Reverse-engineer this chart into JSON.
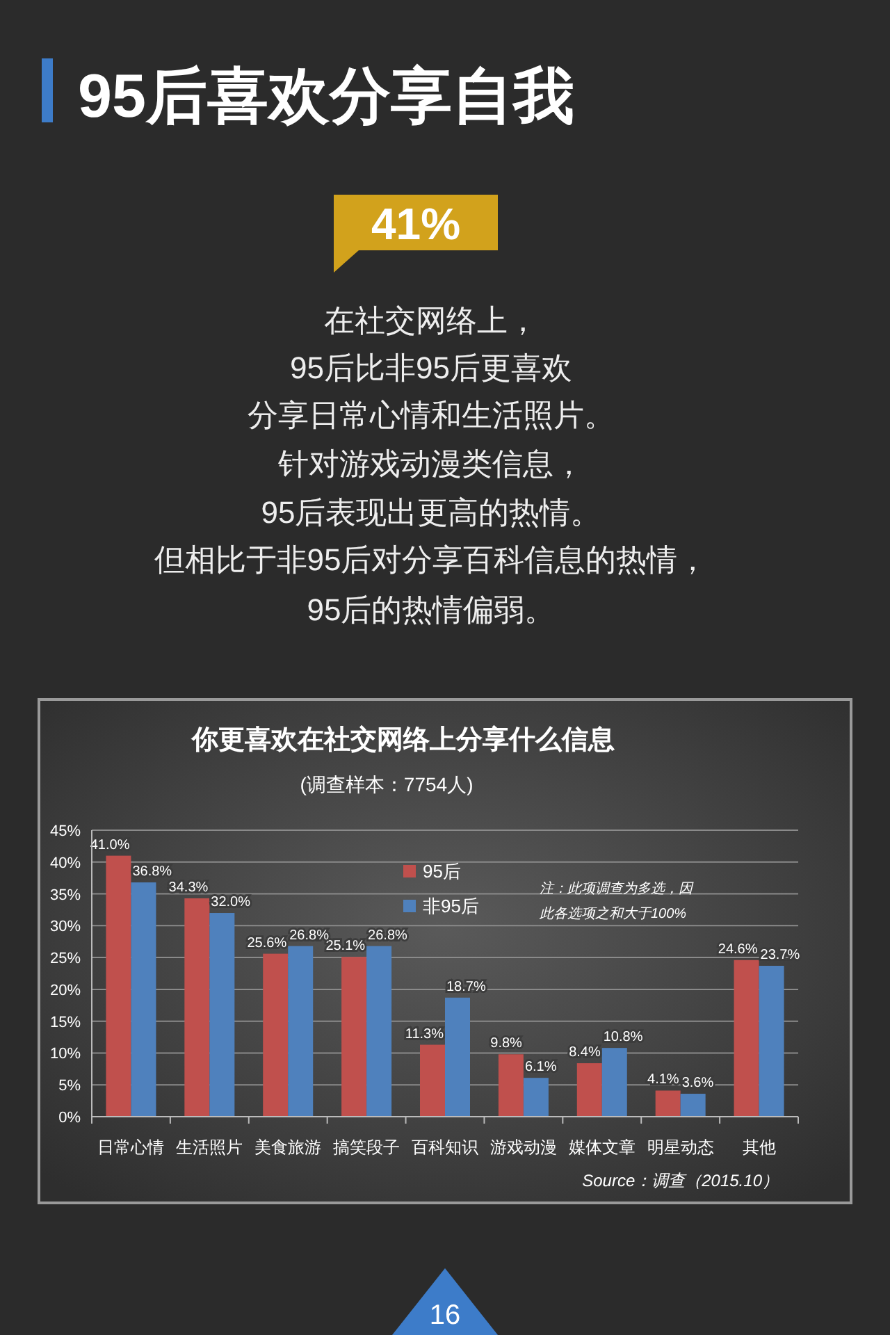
{
  "chart_data": {
    "type": "bar",
    "title": "你更喜欢在社交网络上分享什么信息",
    "subtitle": "(调查样本：7754人)",
    "categories": [
      "日常心情",
      "生活照片",
      "美食旅游",
      "搞笑段子",
      "百科知识",
      "游戏动漫",
      "媒体文章",
      "明星动态",
      "其他"
    ],
    "series": [
      {
        "name": "95后",
        "color": "#c0504d",
        "values": [
          41.0,
          34.3,
          25.6,
          25.1,
          11.3,
          9.8,
          8.4,
          4.1,
          24.6
        ]
      },
      {
        "name": "非95后",
        "color": "#4f81bd",
        "values": [
          36.8,
          32.0,
          26.8,
          26.8,
          18.7,
          6.1,
          10.8,
          3.6,
          23.7
        ]
      }
    ],
    "ylim": [
      0,
      45
    ],
    "yticks": [
      {
        "value": 0,
        "label": "0%"
      },
      {
        "value": 5,
        "label": "5%"
      },
      {
        "value": 10,
        "label": "10%"
      },
      {
        "value": 15,
        "label": "15%"
      },
      {
        "value": 20,
        "label": "20%"
      },
      {
        "value": 25,
        "label": "25%"
      },
      {
        "value": 30,
        "label": "30%"
      },
      {
        "value": 35,
        "label": "35%"
      },
      {
        "value": 40,
        "label": "40%"
      },
      {
        "value": 45,
        "label": "45%"
      }
    ],
    "value_labels": [
      [
        "41.0%",
        "34.3%",
        "25.6%",
        "25.1%",
        "11.3%",
        "9.8%",
        "8.4%",
        "4.1%",
        "24.6%"
      ],
      [
        "36.8%",
        "32.0%",
        "26.8%",
        "26.8%",
        "18.7%",
        "6.1%",
        "10.8%",
        "3.6%",
        "23.7%"
      ]
    ],
    "grid": "y",
    "legend": "top",
    "annotations": [
      "95后喜欢分享自我",
      "41%",
      "在社交网络上，",
      "95后比非95后更喜欢",
      "分享日常心情和生活照片。",
      "针对游戏动漫类信息，",
      "95后表现出更高的热情。",
      "但相比于非95后对分享百科信息的热情，",
      "95后的热情偏弱。",
      "注：此项调查为多选，因此各选项之和大于100%",
      "Source：调查（2015.10）",
      "16"
    ]
  }
}
